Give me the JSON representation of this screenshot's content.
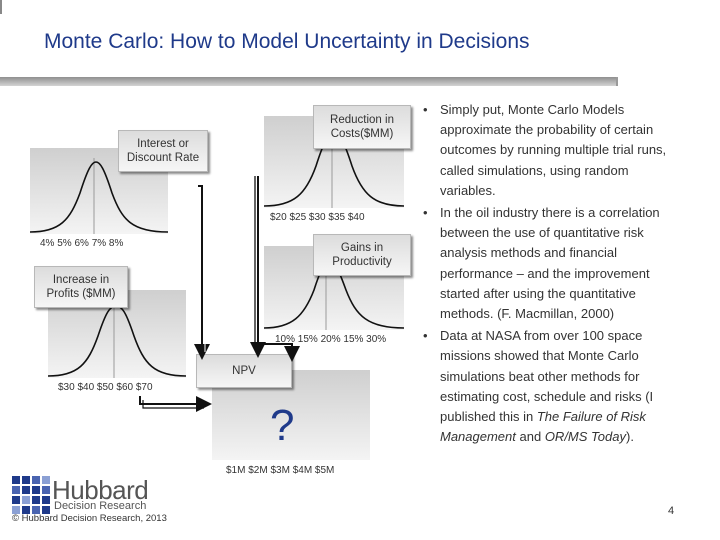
{
  "slide": {
    "title": "Monte Carlo: How to Model Uncertainty in Decisions",
    "page_number": "4",
    "copyright": "© Hubbard Decision Research, 2013"
  },
  "logo": {
    "name": "Hubbard",
    "sub": "Decision Research"
  },
  "diagram": {
    "interest": {
      "label": "Interest or Discount Rate",
      "ticks": "4%   5%   6%   7%   8%"
    },
    "costs": {
      "label": "Reduction in Costs($MM)",
      "ticks": "$20  $25  $30  $35  $40"
    },
    "productivity": {
      "label": "Gains in Productivity",
      "ticks": "10%  15%  20%  15%  30%"
    },
    "profits": {
      "label": "Increase in Profits ($MM)",
      "ticks": "$30    $40  $50  $60  $70"
    },
    "npv": {
      "label": "NPV",
      "ticks": "$1M   $2M  $3M  $4M   $5M",
      "unknown": "?"
    }
  },
  "bullets": [
    {
      "text": "Simply put, Monte Carlo Models approximate the probability of certain outcomes by running multiple trial runs, called simulations, using random variables."
    },
    {
      "text": "In the oil industry there is a correlation between the use of quantitative risk analysis methods and financial performance – and the improvement started after using the quantitative methods. (F. Macmillan, 2000)"
    },
    {
      "before": "Data at NASA from over 100 space missions showed that Monte Carlo simulations beat other methods for estimating cost, schedule and risks (I published this in ",
      "em1": "The Failure of Risk Management",
      "mid": " and ",
      "em2": "OR/MS Today",
      "after": ")."
    }
  ]
}
